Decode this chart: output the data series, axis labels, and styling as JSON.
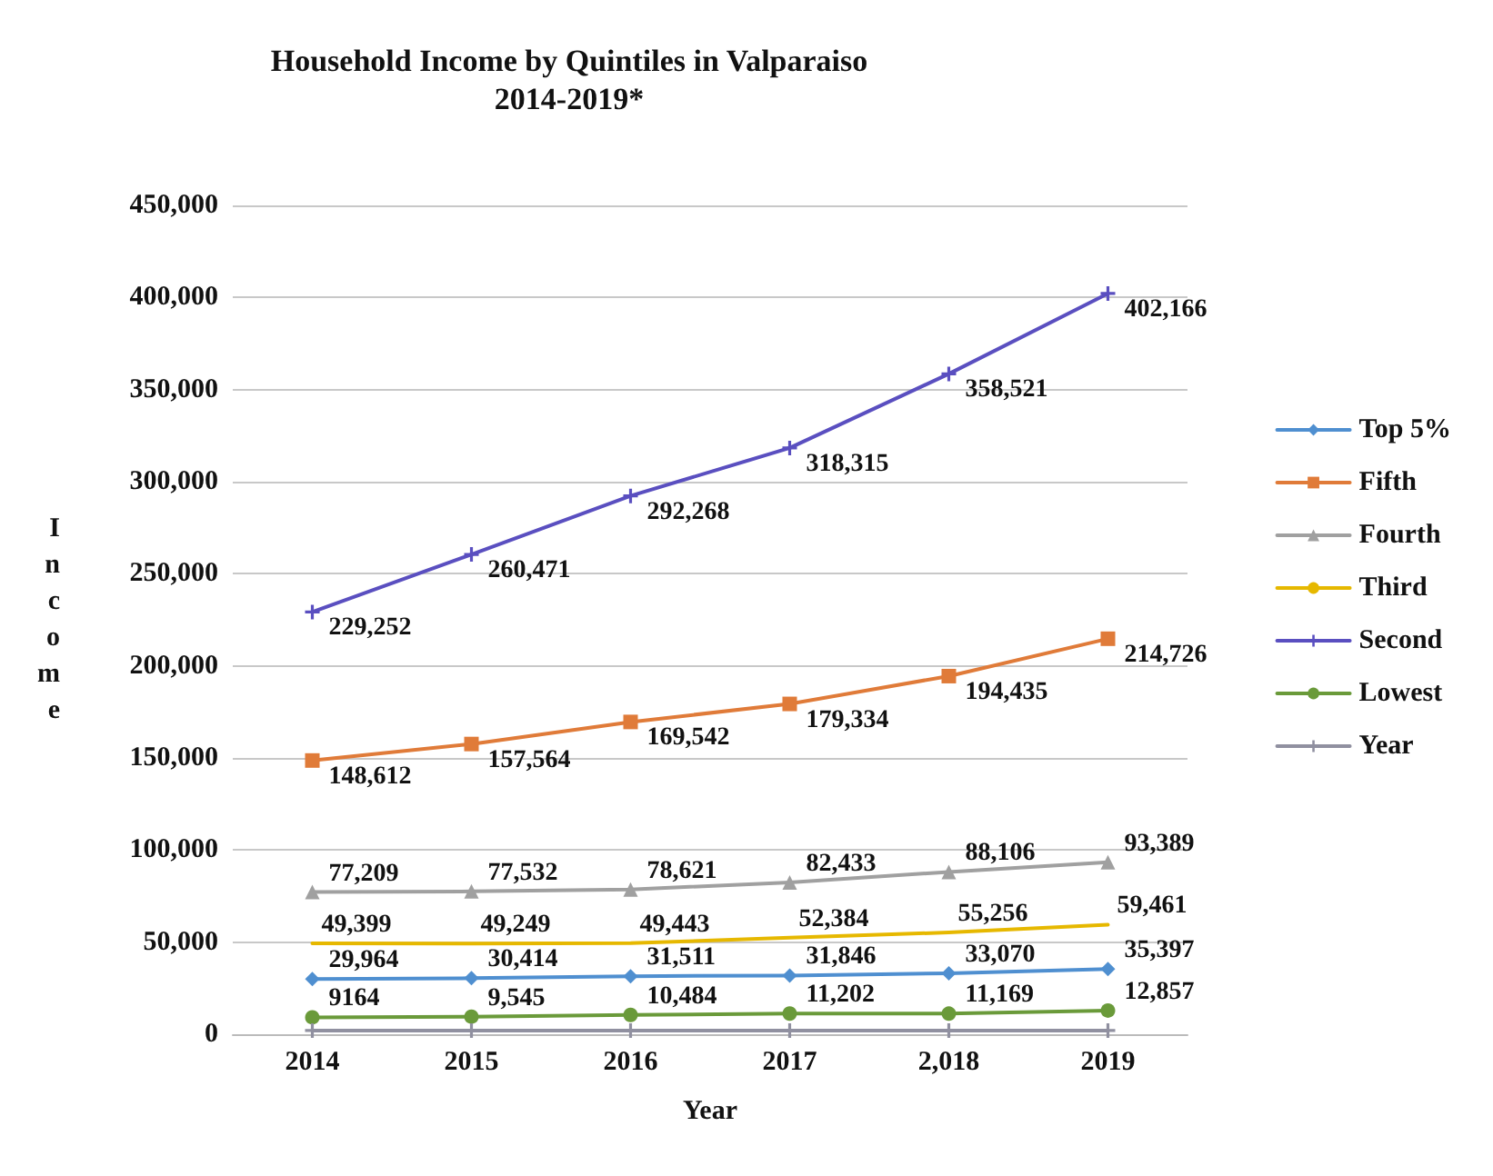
{
  "chart_data": {
    "type": "line",
    "title": "Household Income by Quintiles in Valparaiso",
    "subtitle": "2014-2019*",
    "xlabel": "Year",
    "ylabel": "Income",
    "categories": [
      "2014",
      "2015",
      "2016",
      "2017",
      "2,018",
      "2019"
    ],
    "series": [
      {
        "name": "Top 5%",
        "color": "#4f8fd0",
        "marker": "diamond",
        "values": [
          29964,
          30414,
          31511,
          31846,
          33070,
          35397
        ],
        "value_labels": [
          "29,964",
          "30,414",
          "31,511",
          "31,846",
          "33,070",
          "35,397"
        ]
      },
      {
        "name": "Fifth",
        "color": "#e07b39",
        "marker": "square",
        "values": [
          148612,
          157564,
          169542,
          179334,
          194435,
          214726
        ],
        "value_labels": [
          "148,612",
          "157,564",
          "169,542",
          "179,334",
          "194,435",
          "214,726"
        ]
      },
      {
        "name": "Fourth",
        "color": "#a0a0a0",
        "marker": "triangle",
        "values": [
          77209,
          77532,
          78621,
          82433,
          88106,
          93389
        ],
        "value_labels": [
          "77,209",
          "77,532",
          "78,621",
          "82,433",
          "88,106",
          "93,389"
        ]
      },
      {
        "name": "Third",
        "color": "#e6b800",
        "marker": "none",
        "values": [
          49399,
          49249,
          49443,
          52384,
          55256,
          59461
        ],
        "value_labels": [
          "49,399",
          "49,249",
          "49,443",
          "52,384",
          "55,256",
          "59,461"
        ]
      },
      {
        "name": "Second",
        "color": "#5a4fc0",
        "marker": "cross",
        "values": [
          229252,
          260471,
          292268,
          318315,
          358521,
          402166
        ],
        "value_labels": [
          "229,252",
          "260,471",
          "292,268",
          "318,315",
          "358,521",
          "402,166"
        ]
      },
      {
        "name": "Lowest",
        "color": "#6a9a3a",
        "marker": "circle",
        "values": [
          9164,
          9545,
          10484,
          11202,
          11169,
          12857
        ],
        "value_labels": [
          "9164",
          "9,545",
          "10,484",
          "11,202",
          "11,169",
          "12,857"
        ]
      },
      {
        "name": "Year",
        "color": "#9090a0",
        "marker": "cross",
        "values": [
          2014,
          2015,
          2016,
          2017,
          2018,
          2019
        ]
      }
    ],
    "ylim": [
      0,
      450000
    ],
    "yticks": [
      0,
      {
        "value": 50000,
        "label": "50,000"
      },
      {
        "value": 100000,
        "label": "100,000"
      },
      {
        "value": 150000,
        "label": "150,000"
      },
      {
        "value": 200000,
        "label": "200,000"
      },
      {
        "value": 250000,
        "label": "250,000"
      },
      {
        "value": 300000,
        "label": "300,000"
      },
      {
        "value": 350000,
        "label": "350,000"
      },
      {
        "value": 400000,
        "label": "400,000"
      },
      {
        "value": 450000,
        "label": "450,000"
      }
    ],
    "grid": "y",
    "legend": "right"
  }
}
